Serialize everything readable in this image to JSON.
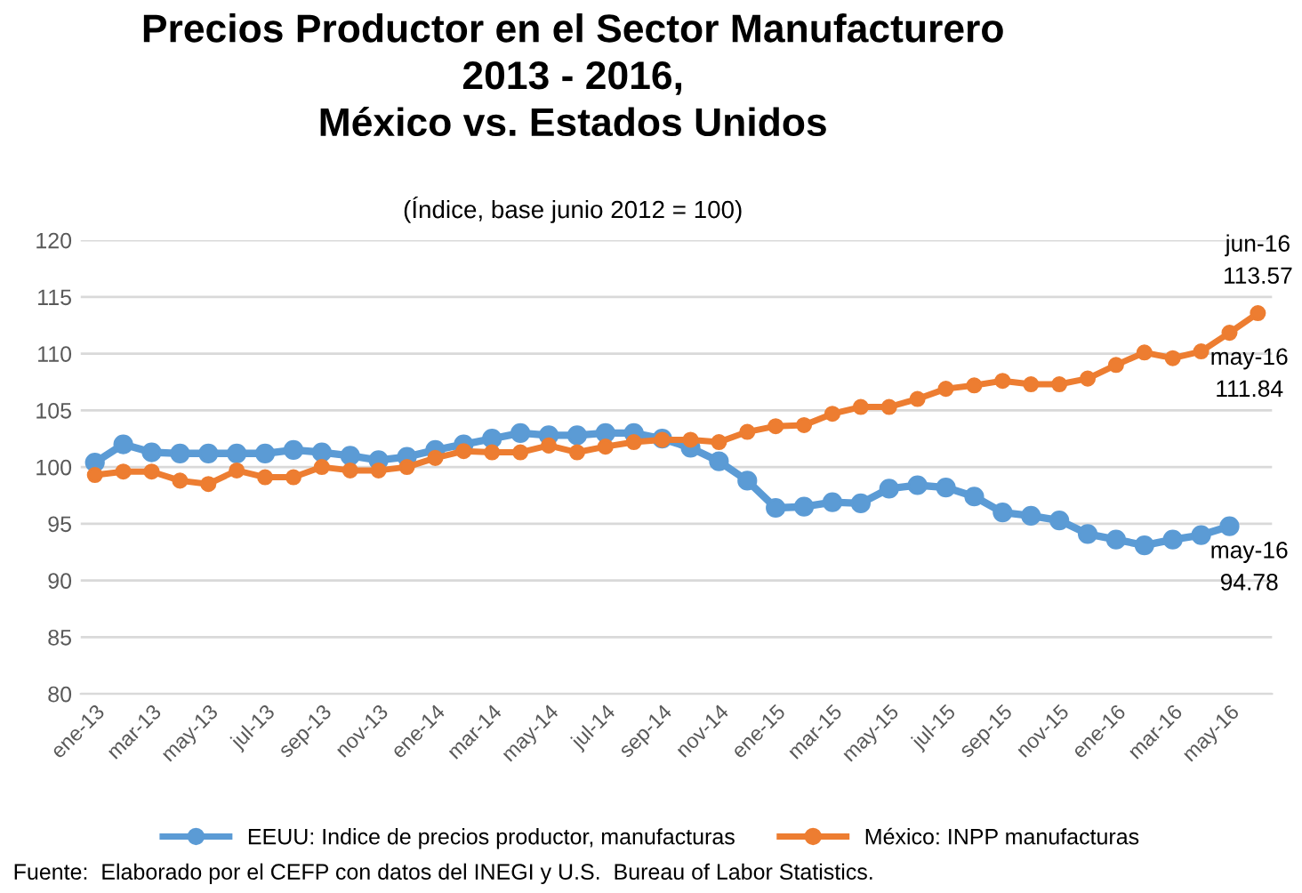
{
  "chart_data": {
    "type": "line",
    "title": "Precios Productor en el Sector Manufacturero\n2013 - 2016,\nMéxico vs. Estados Unidos",
    "subtitle": "(Índice, base junio 2012 = 100)",
    "categories": [
      "ene-13",
      null,
      "mar-13",
      null,
      "may-13",
      null,
      "jul-13",
      null,
      "sep-13",
      null,
      "nov-13",
      null,
      "ene-14",
      null,
      "mar-14",
      null,
      "may-14",
      null,
      "jul-14",
      null,
      "sep-14",
      null,
      "nov-14",
      null,
      "ene-15",
      null,
      "mar-15",
      null,
      "may-15",
      null,
      "jul-15",
      null,
      "sep-15",
      null,
      "nov-15",
      null,
      "ene-16",
      null,
      "mar-16",
      null,
      "may-16",
      null
    ],
    "series": [
      {
        "name": "EEUU: Indice de precios productor, manufacturas",
        "color": "#5b9bd5",
        "values": [
          100.4,
          102.0,
          101.3,
          101.2,
          101.2,
          101.2,
          101.2,
          101.5,
          101.3,
          101.0,
          100.6,
          100.9,
          101.5,
          102.0,
          102.5,
          103.0,
          102.8,
          102.8,
          103.0,
          103.0,
          102.5,
          101.7,
          100.5,
          98.8,
          96.4,
          96.5,
          96.9,
          96.8,
          98.1,
          98.4,
          98.2,
          97.4,
          96.0,
          95.7,
          95.3,
          94.1,
          93.6,
          93.1,
          93.6,
          94.0,
          94.78,
          null
        ],
        "value_labels": [
          null,
          null,
          null,
          null,
          null,
          null,
          null,
          null,
          null,
          null,
          null,
          null,
          null,
          null,
          null,
          null,
          null,
          null,
          null,
          null,
          null,
          null,
          null,
          null,
          null,
          null,
          null,
          null,
          null,
          null,
          null,
          null,
          null,
          null,
          null,
          null,
          null,
          null,
          null,
          null,
          "may-16\n94.78",
          null
        ]
      },
      {
        "name": "México: INPP manufacturas",
        "color": "#ed7d31",
        "values": [
          99.3,
          99.6,
          99.6,
          98.8,
          98.5,
          99.7,
          99.1,
          99.1,
          100.0,
          99.7,
          99.7,
          100.0,
          100.8,
          101.4,
          101.3,
          101.3,
          101.9,
          101.3,
          101.8,
          102.2,
          102.4,
          102.4,
          102.2,
          103.1,
          103.6,
          103.7,
          104.7,
          105.3,
          105.3,
          106.0,
          106.9,
          107.2,
          107.6,
          107.3,
          107.3,
          107.8,
          109.0,
          110.1,
          109.6,
          110.2,
          111.84,
          113.57
        ],
        "value_labels": [
          null,
          null,
          null,
          null,
          null,
          null,
          null,
          null,
          null,
          null,
          null,
          null,
          null,
          null,
          null,
          null,
          null,
          null,
          null,
          null,
          null,
          null,
          null,
          null,
          null,
          null,
          null,
          null,
          null,
          null,
          null,
          null,
          null,
          null,
          null,
          null,
          null,
          null,
          null,
          null,
          "may-16\n111.84",
          "jun-16\n113.57"
        ]
      }
    ],
    "ylim": [
      80,
      120
    ],
    "yticks": [
      80,
      85,
      90,
      95,
      100,
      105,
      110,
      115,
      120
    ],
    "grid": "y",
    "legend": "bottom",
    "marker": "circle",
    "line_style": "solid",
    "annotations": [
      "Fuente:  Elaborado por el CEFP con datos del INEGI y U.S.  Bureau of Labor Statistics."
    ]
  }
}
